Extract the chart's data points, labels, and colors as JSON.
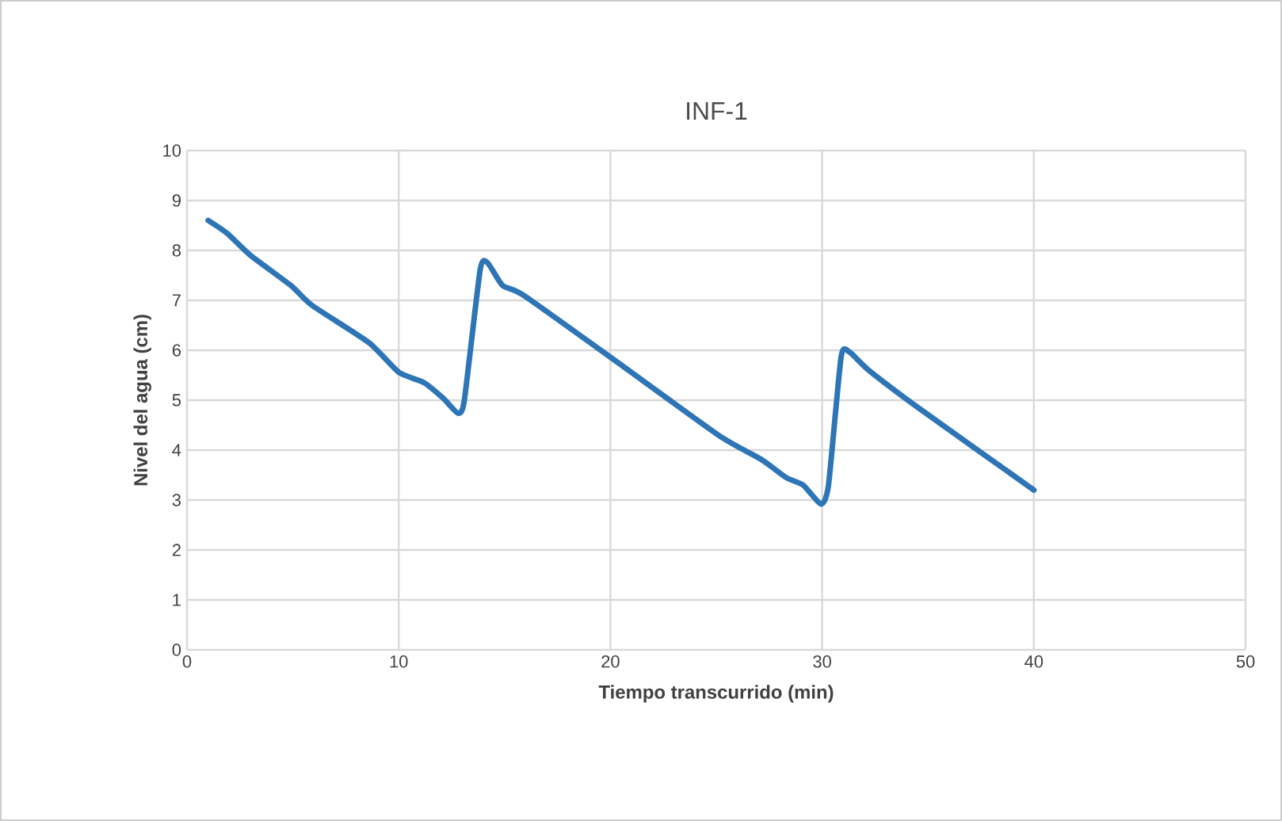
{
  "chart_data": {
    "type": "line",
    "title": "INF-1",
    "xlabel": "Tiempo transcurrido (min)",
    "ylabel": "Nivel del agua (cm)",
    "xlim": [
      0,
      50
    ],
    "xticks": [
      0,
      10,
      20,
      30,
      40,
      50
    ],
    "ylim": [
      0,
      10
    ],
    "yticks": [
      0,
      1,
      2,
      3,
      4,
      5,
      6,
      7,
      8,
      9,
      10
    ],
    "grid": true,
    "marker": "none",
    "line_style": "solid",
    "series": [
      {
        "color": "#2e75b6",
        "x": [
          1,
          1.9,
          3,
          4.9,
          5.9,
          8.6,
          10,
          11.2,
          12.1,
          12.8,
          13.1,
          13.85,
          14.2,
          14.9,
          15.9,
          20.1,
          25.1,
          27.1,
          28.3,
          29.1,
          29.95,
          30.3,
          30.9,
          31.3,
          32.2,
          34.6,
          40
        ],
        "values": [
          8.6,
          8.34,
          7.9,
          7.3,
          6.9,
          6.15,
          5.56,
          5.35,
          5.04,
          4.74,
          5.0,
          7.62,
          7.75,
          7.3,
          7.1,
          5.83,
          4.3,
          3.82,
          3.45,
          3.3,
          2.92,
          3.3,
          5.88,
          5.96,
          5.6,
          4.83,
          3.2
        ]
      }
    ]
  }
}
